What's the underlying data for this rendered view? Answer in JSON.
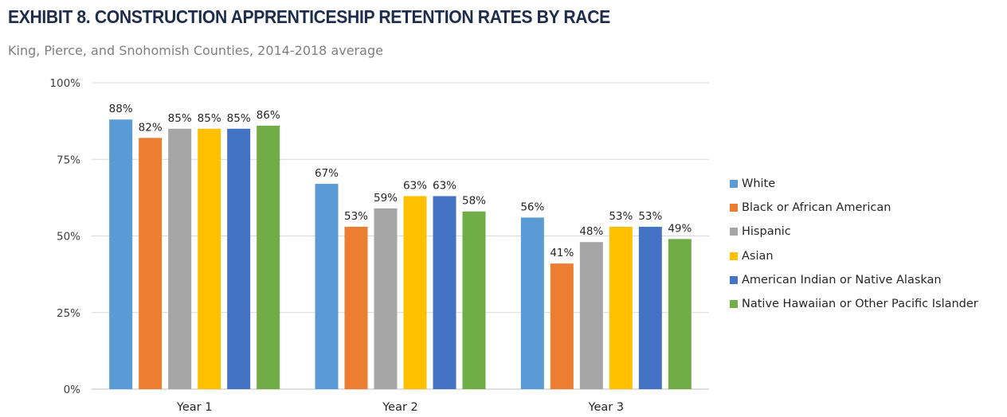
{
  "title": "EXHIBIT 8. CONSTRUCTION APPRENTICESHIP RETENTION RATES BY RACE",
  "subtitle": "King, Pierce, and Snohomish Counties, 2014-2018 average",
  "chart_data": {
    "type": "bar",
    "title": "EXHIBIT 8. CONSTRUCTION APPRENTICESHIP RETENTION RATES BY RACE",
    "subtitle": "King, Pierce, and Snohomish Counties, 2014-2018 average",
    "categories": [
      "Year 1",
      "Year 2",
      "Year 3"
    ],
    "series": [
      {
        "name": "White",
        "values": [
          88,
          67,
          56
        ],
        "color": "#5b9bd5"
      },
      {
        "name": "Black or African American",
        "values": [
          82,
          53,
          41
        ],
        "color": "#ed7d31"
      },
      {
        "name": "Hispanic",
        "values": [
          85,
          59,
          48
        ],
        "color": "#a5a5a5"
      },
      {
        "name": "Asian",
        "values": [
          85,
          63,
          53
        ],
        "color": "#ffc000"
      },
      {
        "name": "American Indian or Native Alaskan",
        "values": [
          85,
          63,
          53
        ],
        "color": "#4472c4"
      },
      {
        "name": "Native Hawaiian or Other Pacific Islander",
        "values": [
          86,
          58,
          49
        ],
        "color": "#70ad47"
      }
    ],
    "yticks": [
      "0%",
      "25%",
      "50%",
      "75%",
      "100%"
    ],
    "ylim": [
      0,
      100
    ],
    "value_suffix": "%",
    "grid": true,
    "legend_position": "right"
  }
}
